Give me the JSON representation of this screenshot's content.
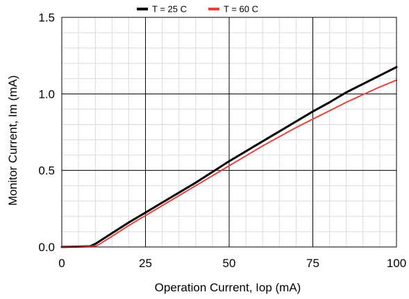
{
  "chart_data": {
    "type": "line",
    "xlabel": "Operation Current, Iop (mA)",
    "ylabel": "Monitor Current, Im (mA)",
    "xlim": [
      0,
      100
    ],
    "ylim": [
      0,
      1.5
    ],
    "x_ticks": [
      0,
      25,
      50,
      75,
      100
    ],
    "x_tick_labels": [
      "0",
      "25",
      "50",
      "75",
      "100"
    ],
    "y_ticks": [
      0,
      0.5,
      1.0,
      1.5
    ],
    "y_tick_labels": [
      "0.0",
      "0.5",
      "1.0",
      "1.5"
    ],
    "minor_x_step": 5,
    "minor_y_step": 0.1,
    "grid": true,
    "legend_position": "top-center",
    "series": [
      {
        "name": "T = 25 C",
        "color": "#000000",
        "x": [
          0,
          8.5,
          10,
          15,
          20,
          25,
          30,
          35,
          40,
          45,
          50,
          55,
          60,
          65,
          70,
          75,
          80,
          85,
          90,
          95,
          100
        ],
        "y": [
          0,
          0.005,
          0.02,
          0.09,
          0.16,
          0.225,
          0.29,
          0.355,
          0.42,
          0.49,
          0.56,
          0.625,
          0.69,
          0.755,
          0.82,
          0.885,
          0.945,
          1.01,
          1.065,
          1.12,
          1.175
        ]
      },
      {
        "name": "T = 60 C",
        "color": "#e8403a",
        "x": [
          0,
          10,
          11,
          15,
          20,
          25,
          30,
          35,
          40,
          45,
          50,
          55,
          60,
          65,
          70,
          75,
          80,
          85,
          90,
          95,
          100
        ],
        "y": [
          0,
          0.005,
          0.015,
          0.07,
          0.14,
          0.205,
          0.27,
          0.335,
          0.4,
          0.465,
          0.53,
          0.595,
          0.66,
          0.72,
          0.78,
          0.835,
          0.89,
          0.945,
          0.995,
          1.045,
          1.09
        ]
      }
    ]
  }
}
